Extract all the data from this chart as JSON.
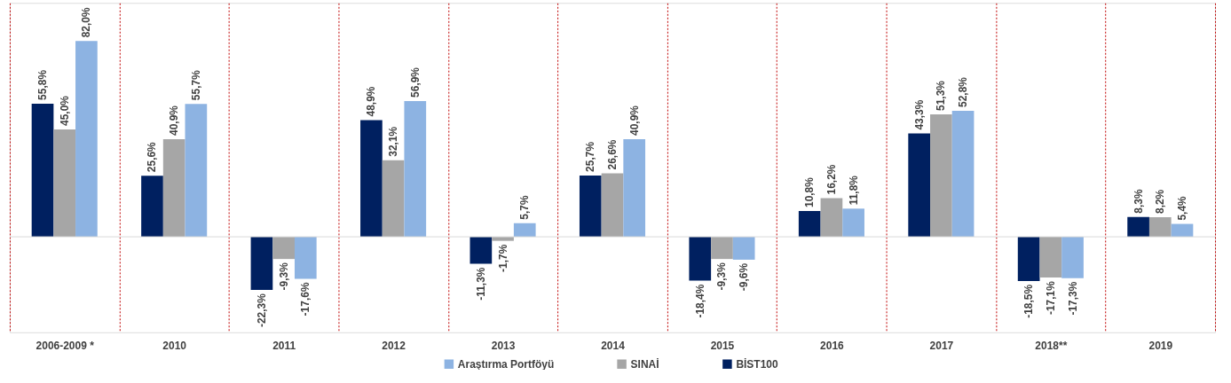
{
  "chart_data": {
    "type": "bar",
    "categories": [
      "2006-2009 *",
      "2010",
      "2011",
      "2012",
      "2013",
      "2014",
      "2015",
      "2016",
      "2017",
      "2018**",
      "2019"
    ],
    "series": [
      {
        "name": "BİST100",
        "color": "#002060",
        "values": [
          55.8,
          25.6,
          -22.3,
          48.9,
          -11.3,
          25.7,
          -18.4,
          10.8,
          43.3,
          -18.5,
          8.3
        ],
        "value_labels": [
          "55,8%",
          "25,6%",
          "-22,3%",
          "48,9%",
          "-11,3%",
          "25,7%",
          "-18,4%",
          "10,8%",
          "43,3%",
          "-18,5%",
          "8,3%"
        ]
      },
      {
        "name": "SINAİ",
        "color": "#a6a6a6",
        "values": [
          45.0,
          40.9,
          -9.3,
          32.1,
          -1.7,
          26.6,
          -9.3,
          16.2,
          51.3,
          -17.1,
          8.2
        ],
        "value_labels": [
          "45,0%",
          "40,9%",
          "-9,3%",
          "32,1%",
          "-1,7%",
          "26,6%",
          "-9,3%",
          "16,2%",
          "51,3%",
          "-17,1%",
          "8,2%"
        ]
      },
      {
        "name": "Araştırma Portföyü",
        "color": "#8db3e2",
        "values": [
          82.0,
          55.7,
          -17.6,
          56.9,
          5.7,
          40.9,
          -9.6,
          11.8,
          52.8,
          -17.3,
          5.4
        ],
        "value_labels": [
          "82,0%",
          "55,7%",
          "-17,6%",
          "56,9%",
          "5,7%",
          "40,9%",
          "-9,6%",
          "11,8%",
          "52,8%",
          "-17,3%",
          "5,4%"
        ]
      }
    ],
    "ylim": [
      -40,
      98
    ],
    "tick_labels": "x",
    "grid": "x",
    "legend": "bottom",
    "ref_lines": [
      {
        "axis": "y",
        "value": 0,
        "color": "#d9d9d9"
      }
    ]
  }
}
